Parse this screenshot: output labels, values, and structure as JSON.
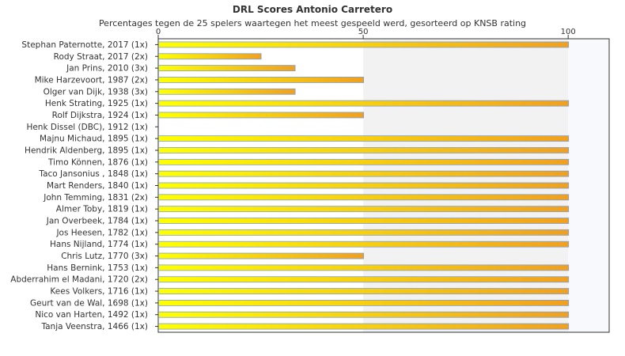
{
  "chart_data": {
    "type": "bar",
    "orientation": "horizontal",
    "title": "DRL Scores Antonio Carretero",
    "subtitle": "Percentages tegen de 25 spelers waartegen het meest gespeeld werd, gesorteerd op KNSB rating",
    "categories": [
      "Stephan Paternotte, 2017 (1x)",
      "Rody Straat, 2017 (2x)",
      "Jan Prins, 2010 (3x)",
      "Mike Harzevoort, 1987 (2x)",
      "Olger van Dijk, 1938 (3x)",
      "Henk Strating, 1925 (1x)",
      "Rolf Dijkstra, 1924 (1x)",
      "Henk Dissel (DBC), 1912 (1x)",
      "Majnu Michaud, 1895 (1x)",
      "Hendrik Aldenberg, 1895 (1x)",
      "Timo Können, 1876 (1x)",
      "Taco Jansonius , 1848 (1x)",
      "Mart Renders, 1840 (1x)",
      "John Temming, 1831 (2x)",
      "Almer Toby, 1819 (1x)",
      "Jan Overbeek, 1784 (1x)",
      "Jos Heesen, 1782 (1x)",
      "Hans Nijland, 1774 (1x)",
      "Chris Lutz, 1770 (3x)",
      "Hans Bernink, 1753 (1x)",
      "Abderrahim el Madani, 1720 (2x)",
      "Kees Volkers, 1716 (1x)",
      "Geurt van de Wal, 1698 (1x)",
      "Nico van Harten, 1492 (1x)",
      "Tanja Veenstra, 1466 (1x)"
    ],
    "values": [
      100,
      25,
      33.3,
      50,
      33.3,
      100,
      50,
      0,
      100,
      100,
      100,
      100,
      100,
      100,
      100,
      100,
      100,
      100,
      50,
      100,
      100,
      100,
      100,
      100,
      100
    ],
    "xlim": [
      0,
      110
    ],
    "xticks": [
      0,
      50,
      100
    ],
    "xtick_labels": [
      "0",
      "50",
      "100"
    ],
    "bands": [
      [
        50,
        100
      ]
    ],
    "colors": {
      "bar_start": "#ffff00",
      "bar_end": "#f0a020",
      "bar_border": "#7f9fcf",
      "band": "#f2f2f2",
      "band_right": "#f7f9fc",
      "axis": "#333333"
    }
  }
}
